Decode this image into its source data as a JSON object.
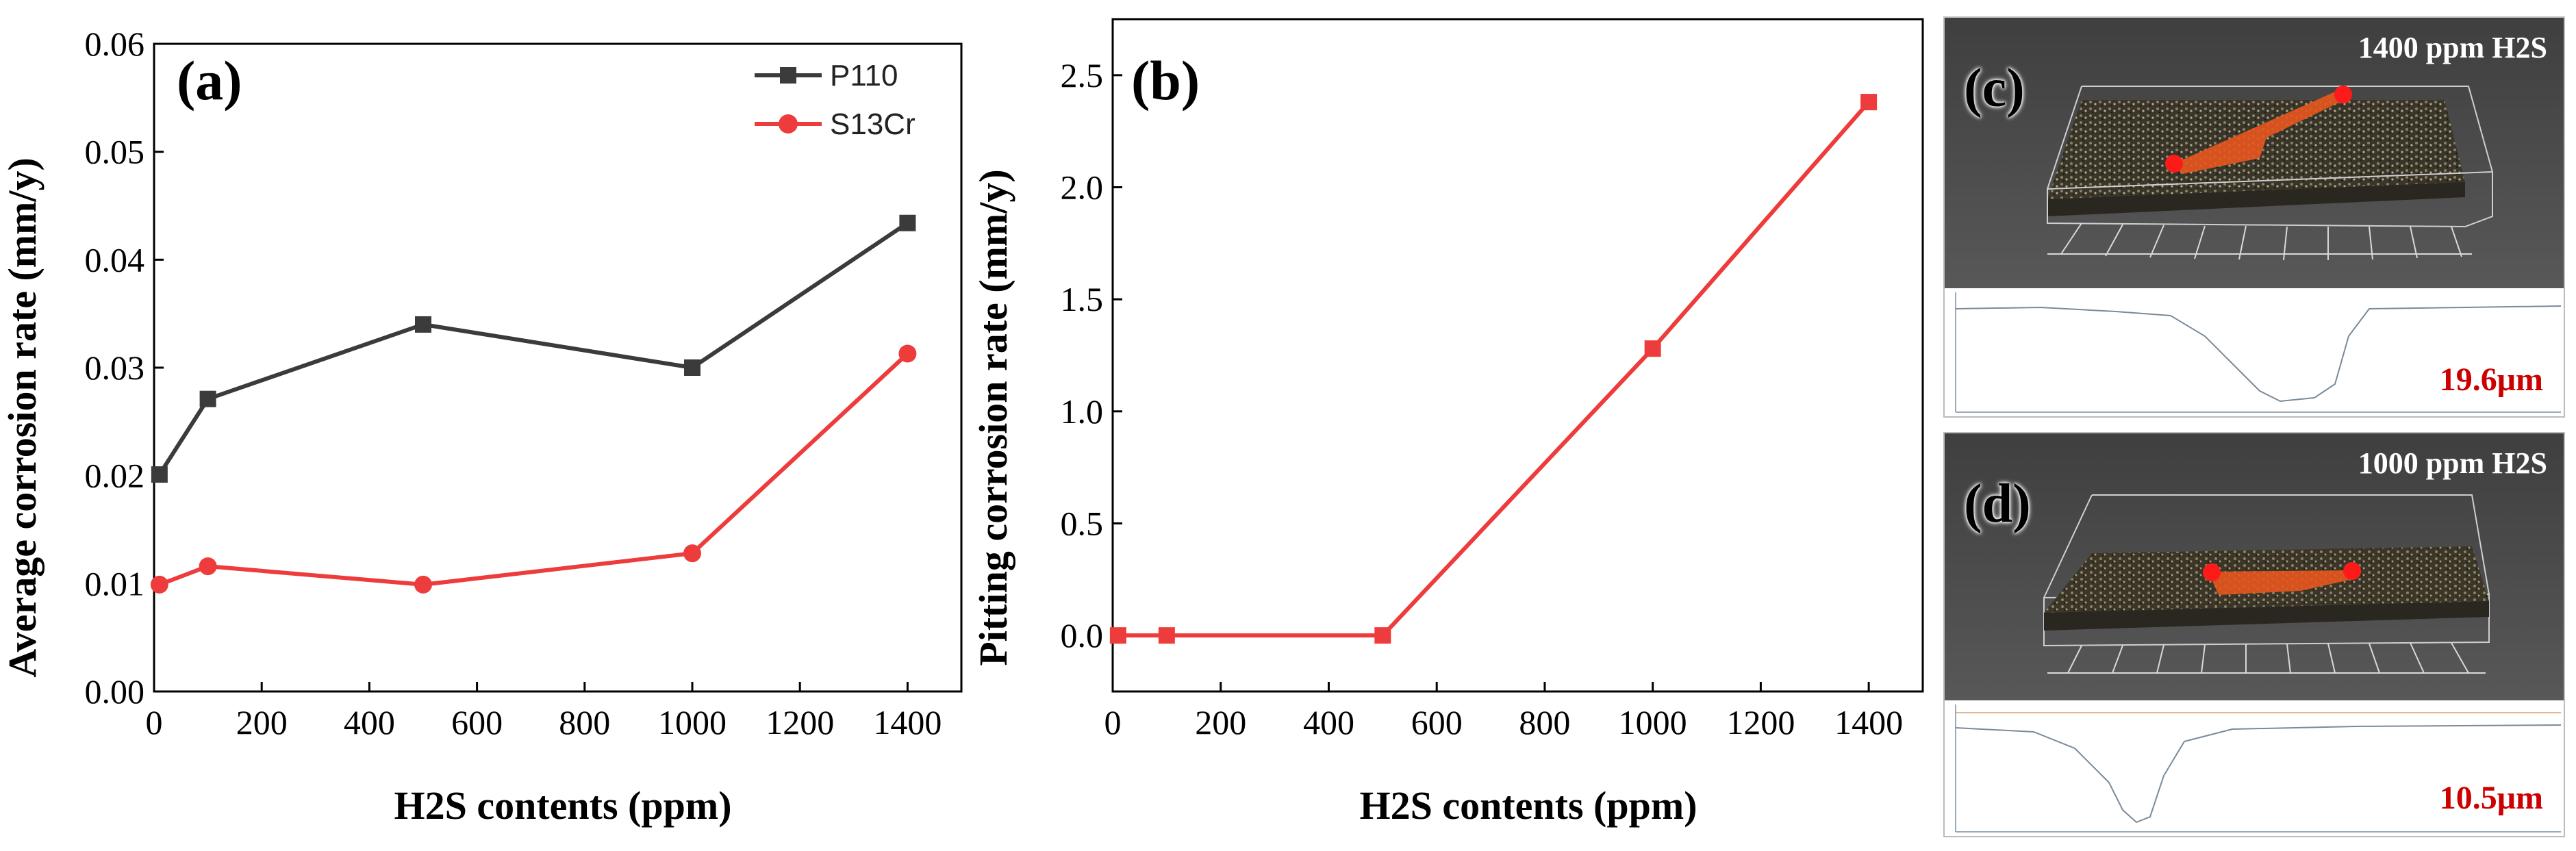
{
  "chart_data": [
    {
      "type": "line",
      "panel_label": "(a)",
      "xlabel": "H2S contents (ppm)",
      "ylabel": "Average corrosion rate (mm/y)",
      "xlim": [
        0,
        1500
      ],
      "ylim": [
        0,
        0.06
      ],
      "x_ticks": [
        "0",
        "200",
        "400",
        "600",
        "800",
        "1000",
        "1200",
        "1400"
      ],
      "y_ticks": [
        "0.00",
        "0.01",
        "0.02",
        "0.03",
        "0.04",
        "0.05",
        "0.06"
      ],
      "legend_position": "top-right",
      "series": [
        {
          "name": "P110",
          "color": "#3b3b3b",
          "marker": "square",
          "x": [
            10,
            100,
            500,
            1000,
            1400
          ],
          "values": [
            0.0201,
            0.0271,
            0.034,
            0.03,
            0.0434
          ]
        },
        {
          "name": "S13Cr",
          "color": "#ee3b3b",
          "marker": "circle",
          "x": [
            10,
            100,
            500,
            1000,
            1400
          ],
          "values": [
            0.0099,
            0.0116,
            0.0099,
            0.0128,
            0.0313
          ]
        }
      ]
    },
    {
      "type": "line",
      "panel_label": "(b)",
      "xlabel": "H2S contents (ppm)",
      "ylabel": "Pitting corrosion rate (mm/y)",
      "xlim": [
        0,
        1500
      ],
      "ylim": [
        -0.25,
        2.75
      ],
      "x_ticks": [
        "0",
        "200",
        "400",
        "600",
        "800",
        "1000",
        "1200",
        "1400"
      ],
      "y_ticks": [
        "0.0",
        "0.5",
        "1.0",
        "1.5",
        "2.0",
        "2.5"
      ],
      "series": [
        {
          "name": "S13Cr",
          "color": "#ee3b3b",
          "marker": "square",
          "x": [
            10,
            100,
            500,
            1000,
            1400
          ],
          "values": [
            0.0,
            0.0,
            0.0,
            1.28,
            2.38
          ]
        }
      ]
    }
  ],
  "panels": {
    "c": {
      "label": "(c)",
      "title": "1400 ppm H2S",
      "depth": "19.6μm"
    },
    "d": {
      "label": "(d)",
      "title": "1000 ppm H2S",
      "depth": "10.5μm"
    }
  },
  "colors": {
    "p110": "#3b3b3b",
    "s13cr": "#ee3b3b",
    "depth_text": "#cc0000",
    "photo_bg": "#4a4a4a"
  }
}
